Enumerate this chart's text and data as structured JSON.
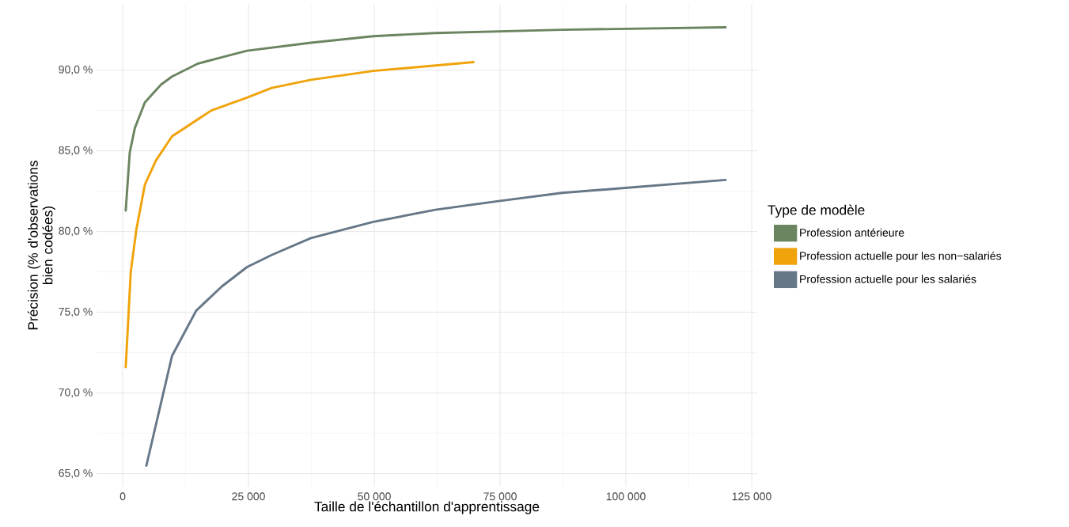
{
  "chart_data": {
    "type": "line",
    "xlabel": "Taille de l'échantillon d'apprentissage",
    "ylabel": "Précision (% d'observations bien codées)",
    "legend_title": "Type de modèle",
    "xlim": [
      -5200,
      126100
    ],
    "ylim": [
      64.2,
      94.1
    ],
    "xticks": [
      0,
      {
        "value": 25000,
        "label": "25 000"
      },
      {
        "value": 50000,
        "label": "50 000"
      },
      {
        "value": 75000,
        "label": "75 000"
      },
      {
        "value": 100000,
        "label": "100 000"
      },
      {
        "value": 125000,
        "label": "125 000"
      }
    ],
    "yticks": [
      {
        "value": 65,
        "label": "65,0 %"
      },
      {
        "value": 70,
        "label": "70,0 %"
      },
      {
        "value": 75,
        "label": "75,0 %"
      },
      {
        "value": 80,
        "label": "80,0 %"
      },
      {
        "value": 85,
        "label": "85,0 %"
      },
      {
        "value": 90,
        "label": "90,0 %"
      }
    ],
    "grid": true,
    "legend": "right",
    "marker": "none",
    "line_style": "solid",
    "series": [
      {
        "name": "Profession antérieure",
        "color": "#6b8560",
        "x": [
          600,
          1400,
          2400,
          4400,
          7600,
          9800,
          14900,
          19700,
          24700,
          37400,
          49800,
          62100,
          87300,
          119800
        ],
        "values": [
          81.3,
          84.9,
          86.4,
          88.0,
          89.1,
          89.6,
          90.4,
          90.8,
          91.2,
          91.7,
          92.1,
          92.3,
          92.5,
          92.65
        ]
      },
      {
        "name": "Profession actuelle pour les non−salariés",
        "color": "#f0a30a",
        "x": [
          600,
          1600,
          2700,
          4400,
          6600,
          9800,
          17600,
          24700,
          29600,
          37400,
          49800,
          69700
        ],
        "values": [
          71.6,
          77.5,
          80.1,
          82.9,
          84.4,
          85.9,
          87.5,
          88.3,
          88.9,
          89.4,
          89.95,
          90.5
        ]
      },
      {
        "name": "Profession actuelle pour les salariés",
        "color": "#667788",
        "x": [
          4700,
          9800,
          14600,
          19700,
          24700,
          29600,
          37400,
          49800,
          62100,
          75000,
          87300,
          99800,
          119800
        ],
        "values": [
          65.5,
          72.3,
          75.1,
          76.6,
          77.8,
          78.55,
          79.6,
          80.6,
          81.35,
          81.9,
          82.4,
          82.7,
          83.2
        ]
      }
    ]
  }
}
